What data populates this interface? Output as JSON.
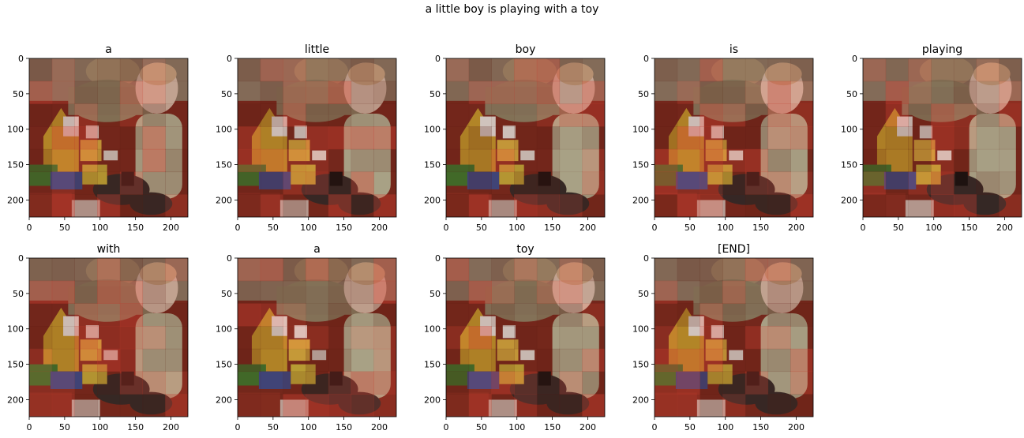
{
  "figure": {
    "suptitle": "a little boy is playing with a toy"
  },
  "chart_data": {
    "type": "heatmap",
    "panels": [
      {
        "title": "a"
      },
      {
        "title": "little"
      },
      {
        "title": "boy"
      },
      {
        "title": "is"
      },
      {
        "title": "playing"
      },
      {
        "title": "with"
      },
      {
        "title": "a"
      },
      {
        "title": "toy"
      },
      {
        "title": "[END]"
      }
    ],
    "image_extent": [
      0,
      224
    ],
    "xticks": [
      0,
      50,
      100,
      150,
      200
    ],
    "yticks": [
      0,
      50,
      100,
      150,
      200
    ],
    "attention_grid_size": 7,
    "overlay_color": "#c0392b",
    "colors": {
      "floor": "#7a2a1e",
      "rug_pale": "#c8a193",
      "person_shirt": "#8c8466",
      "child_shirt": "#b7b99a",
      "child_face": "#d8c0ad",
      "toy_yellow": "#c49a2c",
      "pants": "#2f2b29",
      "blocks_green": "#3c7a2e",
      "blocks_blue": "#3a4e8f"
    }
  }
}
